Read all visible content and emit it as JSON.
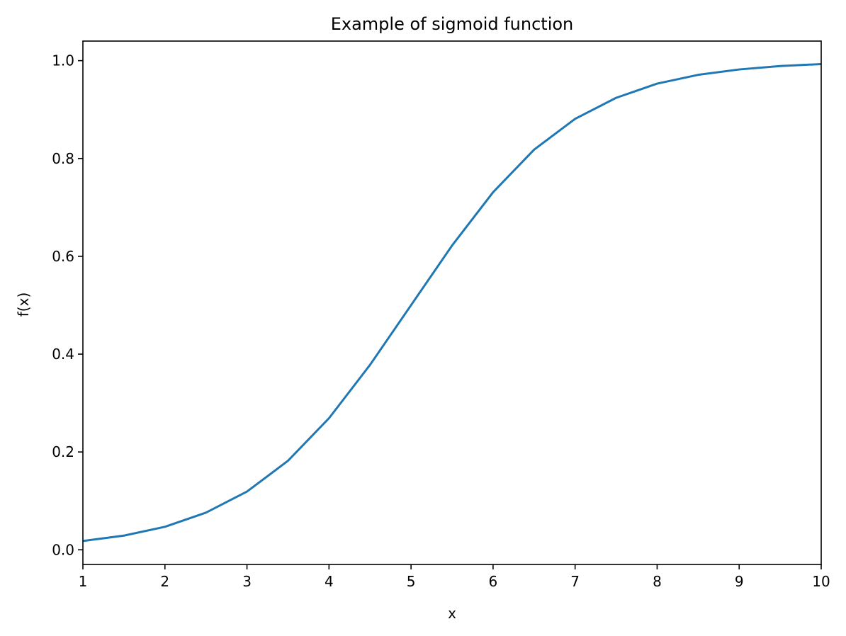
{
  "chart_data": {
    "type": "line",
    "title": "Example of sigmoid function",
    "xlabel": "x",
    "ylabel": "f(x)",
    "xlim": [
      1,
      10
    ],
    "ylim": [
      -0.03,
      1.04
    ],
    "grid": false,
    "legend": "none",
    "x_ticks": [
      "1",
      "2",
      "3",
      "4",
      "5",
      "6",
      "7",
      "8",
      "9",
      "10"
    ],
    "y_ticks": [
      "0.0",
      "0.2",
      "0.4",
      "0.6",
      "0.8",
      "1.0"
    ],
    "series": [
      {
        "color": "#1f77b4",
        "x": [
          1.0,
          1.5,
          2.0,
          2.5,
          3.0,
          3.5,
          4.0,
          4.5,
          5.0,
          5.5,
          6.0,
          6.5,
          7.0,
          7.5,
          8.0,
          8.5,
          9.0,
          9.5,
          10.0
        ],
        "y": [
          0.018,
          0.029,
          0.047,
          0.076,
          0.119,
          0.182,
          0.269,
          0.378,
          0.5,
          0.622,
          0.731,
          0.818,
          0.881,
          0.924,
          0.953,
          0.971,
          0.982,
          0.989,
          0.993
        ]
      }
    ]
  }
}
